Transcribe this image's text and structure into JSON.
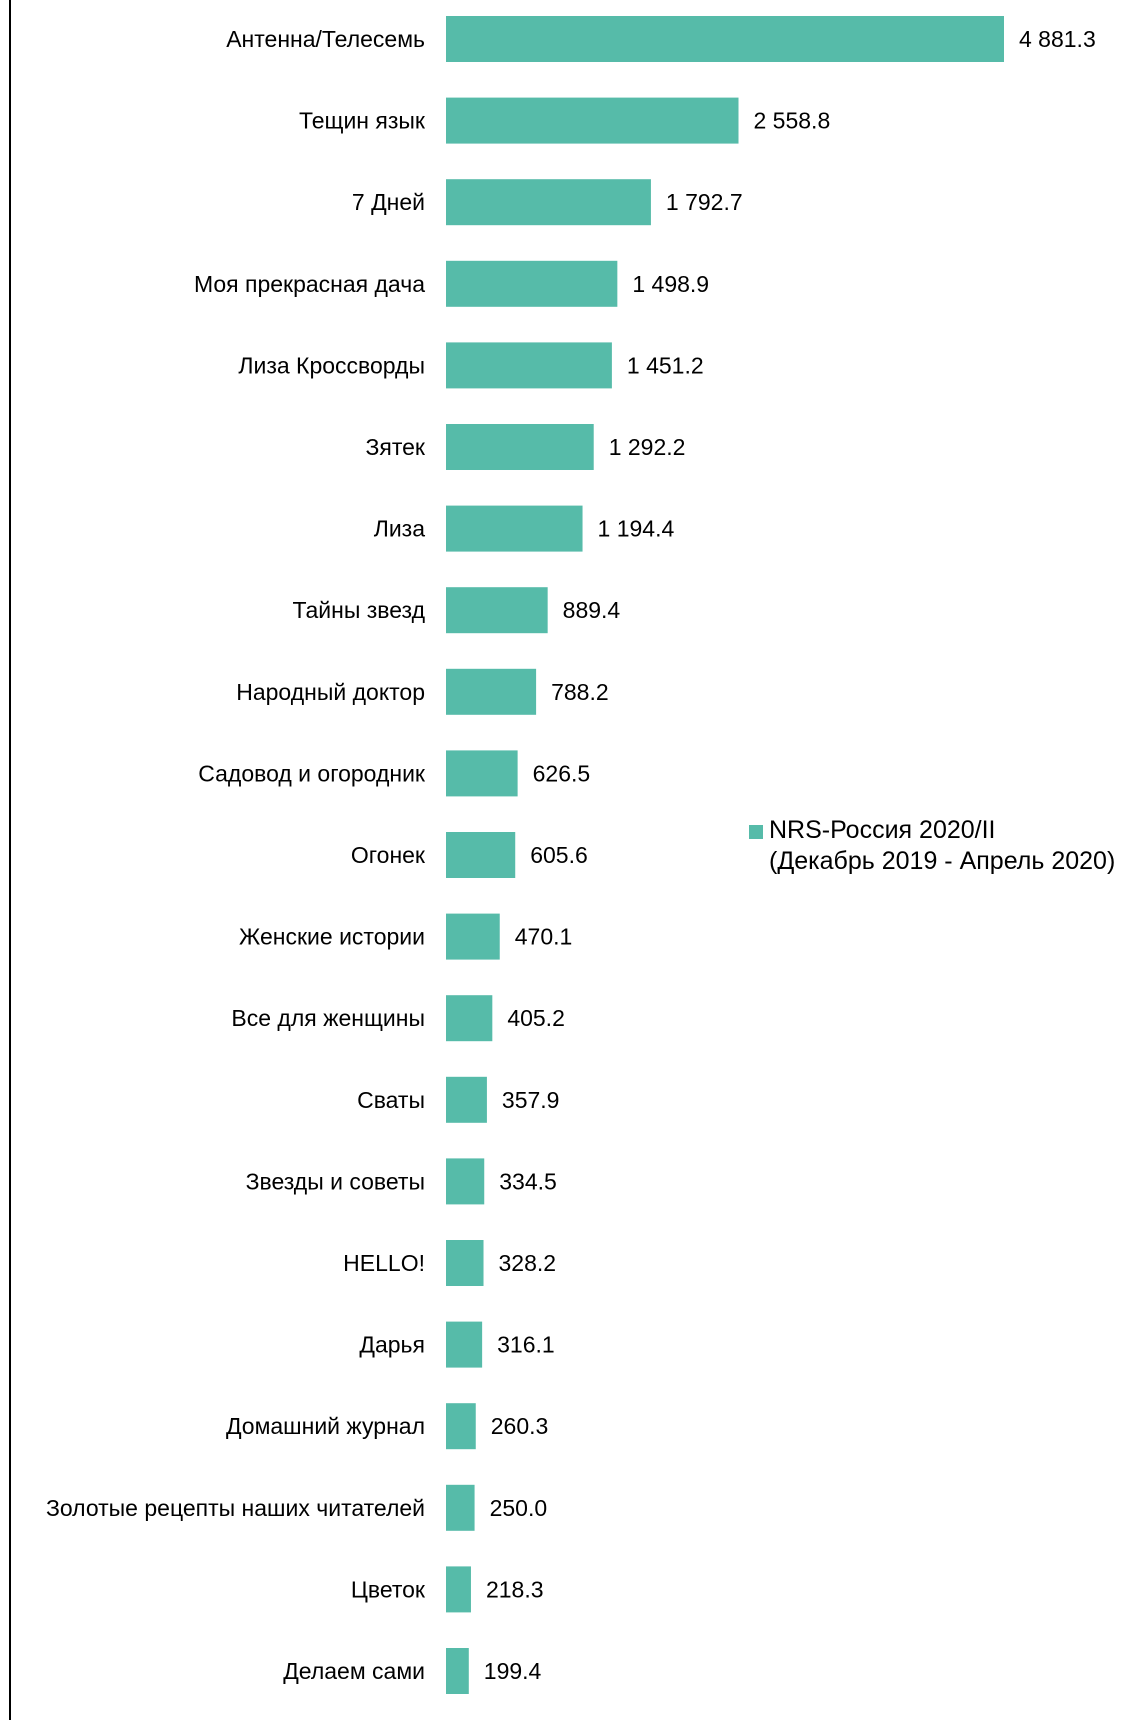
{
  "chart_data": {
    "type": "bar",
    "orientation": "horizontal",
    "title": "",
    "xlabel": "",
    "ylabel": "",
    "grid": false,
    "legend_placement": "right",
    "bar_color": "#56bba9",
    "xlim": [
      0,
      4881.3
    ],
    "categories": [
      "Антенна/Телесемь",
      "Тещин язык",
      "7 Дней",
      "Моя прекрасная дача",
      "Лиза Кроссворды",
      "Зятек",
      "Лиза",
      "Тайны звезд",
      "Народный доктор",
      "Садовод и огородник",
      "Огонек",
      "Женские истории",
      "Все для женщины",
      "Сваты",
      "Звезды и советы",
      "HELLO!",
      "Дарья",
      "Домашний журнал",
      "Золотые рецепты наших читателей",
      "Цветок",
      "Делаем сами"
    ],
    "series": [
      {
        "name": "NRS-Россия 2020/II (Декабрь 2019 - Апрель 2020)",
        "values": [
          4881.3,
          2558.8,
          1792.7,
          1498.9,
          1451.2,
          1292.2,
          1194.4,
          889.4,
          788.2,
          626.5,
          605.6,
          470.1,
          405.2,
          357.9,
          334.5,
          328.2,
          316.1,
          260.3,
          250.0,
          218.3,
          199.4
        ],
        "value_labels": [
          "4 881.3",
          "2 558.8",
          "1 792.7",
          "1 498.9",
          "1 451.2",
          "1 292.2",
          "1 194.4",
          "889.4",
          "788.2",
          "626.5",
          "605.6",
          "470.1",
          "405.2",
          "357.9",
          "334.5",
          "328.2",
          "316.1",
          "260.3",
          "250.0",
          "218.3",
          "199.4"
        ]
      }
    ]
  },
  "legend": {
    "line1": "NRS-Россия 2020/II",
    "line2": "(Декабрь 2019 - Апрель 2020)"
  }
}
